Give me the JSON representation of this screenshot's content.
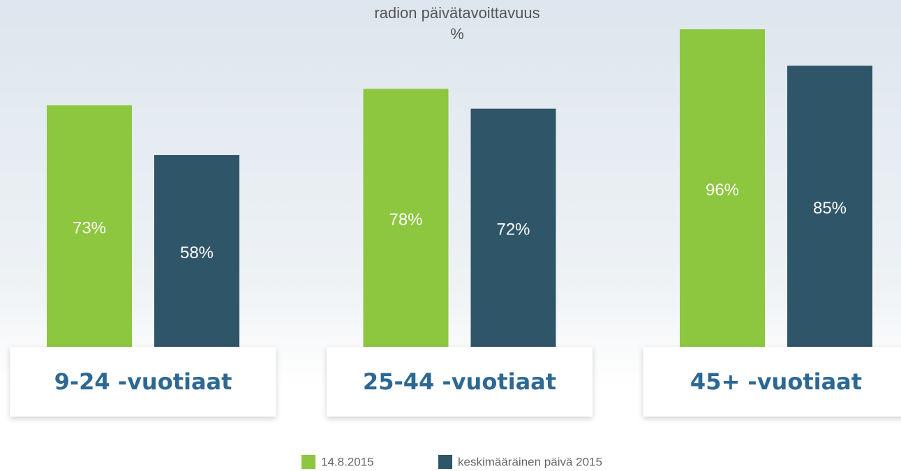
{
  "chart_data": {
    "type": "bar",
    "title": "radion päivätavoittavuus %",
    "categories": [
      "9-24 -vuotiaat",
      "25-44 -vuotiaat",
      "45+ -vuotiaat"
    ],
    "series": [
      {
        "name": "14.8.2015",
        "color": "#8dc63f",
        "values": [
          73,
          78,
          96
        ],
        "value_labels": [
          "73%",
          "78%",
          "96%"
        ]
      },
      {
        "name": "keskimääräinen päivä 2015",
        "color": "#2f5569",
        "values": [
          58,
          72,
          85
        ],
        "value_labels": [
          "58%",
          "72%",
          "85%"
        ]
      }
    ],
    "ylim": [
      0,
      100
    ]
  }
}
